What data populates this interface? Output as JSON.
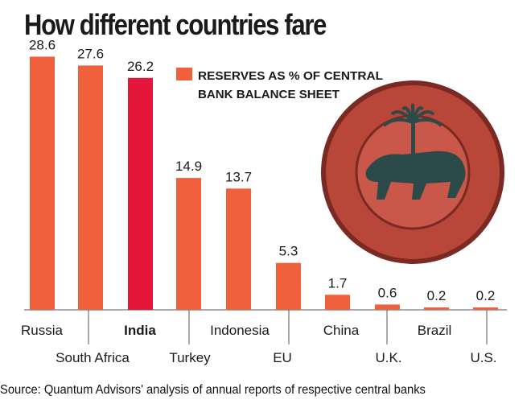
{
  "title": "How different countries fare",
  "source": "Source: Quantum Advisors' analysis of annual reports of respective central banks",
  "colors": {
    "bar": "#f0603c",
    "highlight": "#e4173a",
    "text": "#1a1a1a",
    "axis": "#555555",
    "seal_outer": "#b8473a",
    "seal_inner": "#2d4a4a"
  },
  "icons": {
    "seal": "rbi-seal-icon"
  },
  "chart_data": {
    "type": "bar",
    "categories": [
      "Russia",
      "South Africa",
      "India",
      "Turkey",
      "Indonesia",
      "EU",
      "China",
      "U.K.",
      "Brazil",
      "U.S."
    ],
    "series": [
      {
        "name": "RESERVES AS % OF CENTRAL BANK BALANCE SHEET",
        "values": [
          28.6,
          27.6,
          26.2,
          14.9,
          13.7,
          5.3,
          1.7,
          0.6,
          0.2,
          0.2
        ]
      }
    ],
    "value_labels": [
      "28.6",
      "27.6",
      "26.2",
      "14.9",
      "13.7",
      "5.3",
      "1.7",
      "0.6",
      "0.2",
      "0.2"
    ],
    "highlight_category": "India",
    "legend": [
      "RESERVES AS % OF CENTRAL",
      "BANK BALANCE SHEET"
    ],
    "legend_position": "top-center",
    "ylim": [
      0,
      30
    ],
    "grid": false,
    "xlabel": "",
    "ylabel": ""
  }
}
